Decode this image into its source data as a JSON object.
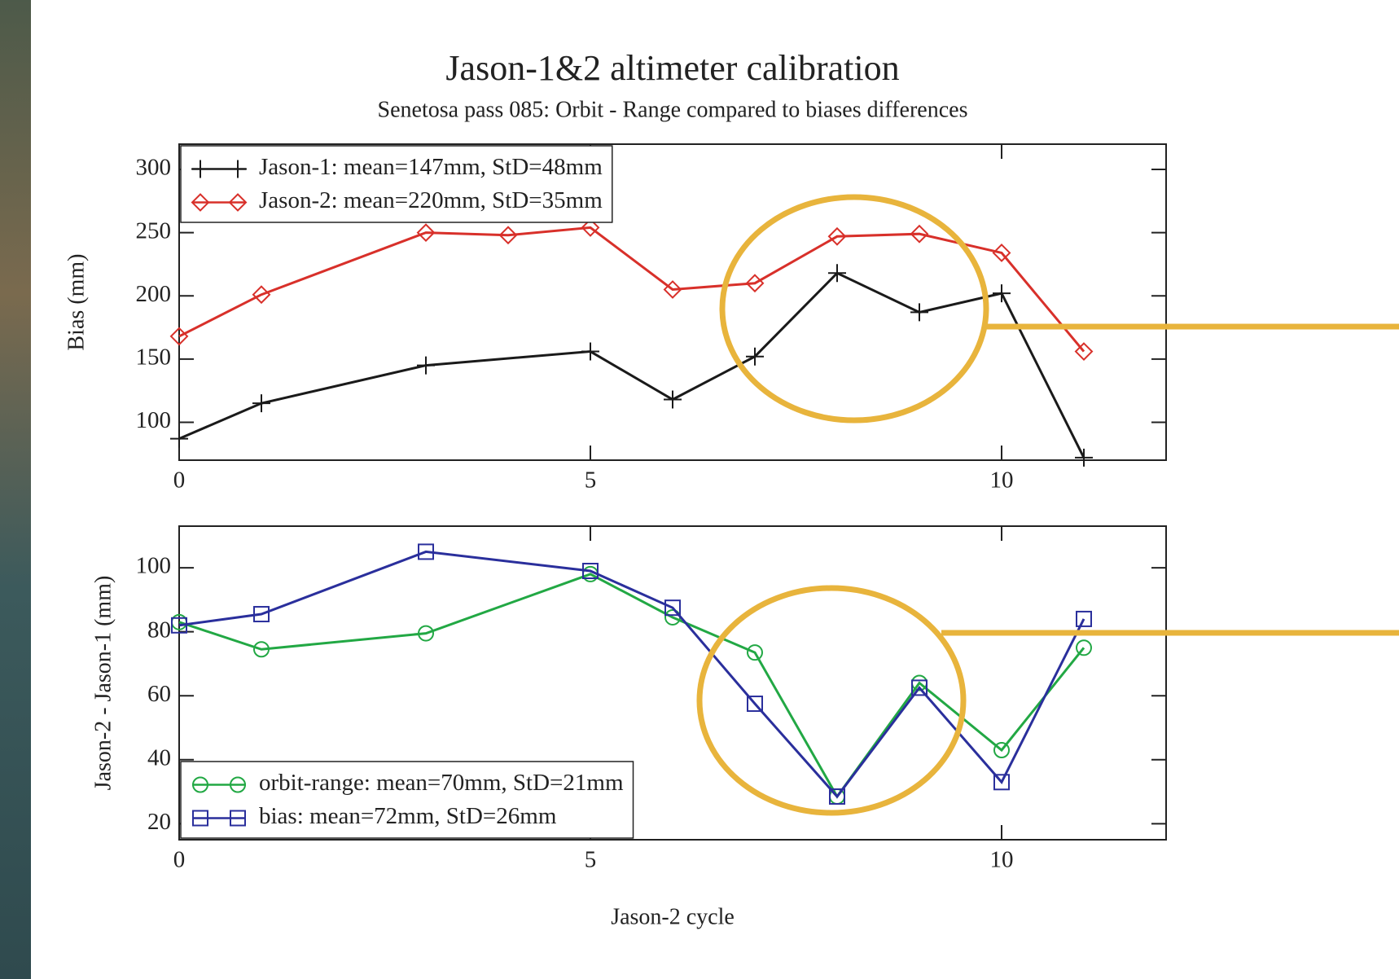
{
  "chart_data": [
    {
      "type": "line",
      "title": "Jason-1&2 altimeter calibration",
      "subtitle": "Senetosa pass 085:  Orbit - Range compared to biases differences",
      "ylabel": "Bias  (mm)",
      "xlim": [
        0,
        12
      ],
      "xticks": [
        0,
        5,
        10
      ],
      "ylim": [
        70,
        320
      ],
      "yticks": [
        100,
        150,
        200,
        250,
        300
      ],
      "legend": "upper left",
      "series": [
        {
          "name": "Jason-1: mean=147mm, StD=48mm",
          "color": "#1a1a1a",
          "marker": "plus",
          "x": [
            0,
            1,
            3,
            5,
            6,
            7,
            8,
            9,
            10,
            11
          ],
          "values": [
            87,
            115,
            145,
            156,
            118,
            152,
            218,
            187,
            202,
            72
          ]
        },
        {
          "name": "Jason-2: mean=220mm, StD=35mm",
          "color": "#d8302a",
          "marker": "diamond",
          "x": [
            0,
            1,
            3,
            4,
            5,
            6,
            7,
            8,
            9,
            10,
            11
          ],
          "values": [
            168,
            201,
            250,
            248,
            254,
            205,
            210,
            247,
            249,
            234,
            156
          ]
        }
      ]
    },
    {
      "type": "line",
      "ylabel": "Jason-2 - Jason-1 (mm)",
      "xlabel": "Jason-2 cycle",
      "xlim": [
        0,
        12
      ],
      "xticks": [
        0,
        5,
        10
      ],
      "ylim": [
        15,
        113
      ],
      "yticks": [
        20,
        40,
        60,
        80,
        100
      ],
      "legend": "lower left",
      "series": [
        {
          "name": "orbit-range:  mean=70mm, StD=21mm",
          "color": "#22a844",
          "marker": "circle",
          "x": [
            0,
            1,
            3,
            5,
            6,
            7,
            8,
            9,
            10,
            11
          ],
          "values": [
            83,
            74.5,
            79.5,
            98,
            84.5,
            73.5,
            28.5,
            64,
            43,
            75
          ]
        },
        {
          "name": "bias: mean=72mm, StD=26mm",
          "color": "#2a2f9c",
          "marker": "square",
          "x": [
            0,
            1,
            3,
            5,
            6,
            7,
            8,
            9,
            10,
            11
          ],
          "values": [
            82,
            85.5,
            105,
            99,
            87.5,
            57.5,
            28.5,
            62.5,
            33,
            84
          ]
        }
      ]
    }
  ]
}
